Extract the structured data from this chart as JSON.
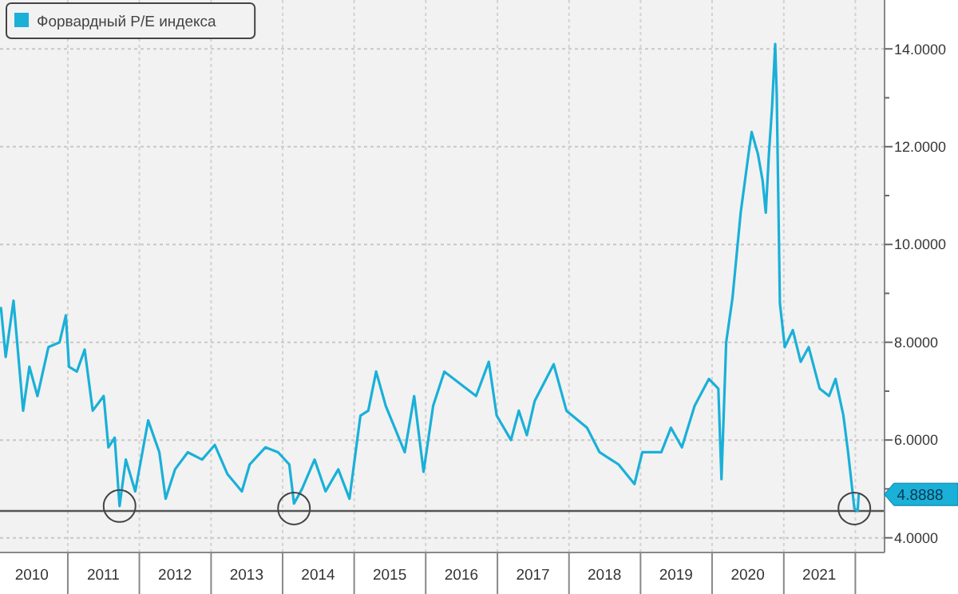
{
  "chart_data": {
    "type": "line",
    "legend": "top left",
    "grid": true,
    "x": [
      "2010-01-25",
      "2010-02-18",
      "2010-03-30",
      "2010-05-18",
      "2010-06-19",
      "2010-07-30",
      "2010-09-24",
      "2010-11-20",
      "2010-12-22",
      "2011-01-07",
      "2011-02-16",
      "2011-03-28",
      "2011-05-08",
      "2011-07-03",
      "2011-07-27",
      "2011-08-28",
      "2011-09-22",
      "2011-10-24",
      "2011-12-11",
      "2012-02-15",
      "2012-04-12",
      "2012-05-14",
      "2012-07-01",
      "2012-09-04",
      "2012-11-16",
      "2013-01-20",
      "2013-03-26",
      "2013-06-07",
      "2013-07-17",
      "2013-10-05",
      "2013-12-09",
      "2014-02-04",
      "2014-02-28",
      "2014-04-10",
      "2014-06-13",
      "2014-08-08",
      "2014-10-12",
      "2014-12-08",
      "2015-02-02",
      "2015-03-14",
      "2015-04-23",
      "2015-06-11",
      "2015-09-16",
      "2015-11-03",
      "2015-12-21",
      "2016-02-08",
      "2016-04-05",
      "2016-06-25",
      "2016-09-14",
      "2016-11-18",
      "2016-12-28",
      "2017-03-11",
      "2017-04-20",
      "2017-05-31",
      "2017-07-10",
      "2017-10-15",
      "2017-12-19",
      "2018-04-03",
      "2018-06-06",
      "2018-09-11",
      "2018-12-01",
      "2019-01-10",
      "2019-04-17",
      "2019-06-05",
      "2019-07-31",
      "2019-10-04",
      "2019-12-16",
      "2020-02-02",
      "2020-02-18",
      "2020-03-13",
      "2020-04-14",
      "2020-05-26",
      "2020-07-05",
      "2020-07-21",
      "2020-08-22",
      "2020-09-15",
      "2020-10-01",
      "2020-10-17",
      "2020-11-02",
      "2020-11-18",
      "2020-11-26",
      "2020-12-12",
      "2021-01-06",
      "2021-02-16",
      "2021-03-28",
      "2021-05-08",
      "2021-07-03",
      "2021-08-20",
      "2021-09-22",
      "2021-11-01",
      "2021-11-25",
      "2021-12-27",
      "2022-01-13",
      "2022-01-18"
    ],
    "series": [
      {
        "name": "Форвардный P/E индекса",
        "color": "#1ab0d8",
        "values": [
          8.7,
          7.7,
          8.85,
          6.6,
          7.5,
          6.9,
          7.9,
          8.0,
          8.55,
          7.5,
          7.4,
          7.85,
          6.6,
          6.9,
          5.85,
          6.05,
          4.65,
          5.6,
          4.95,
          6.4,
          5.75,
          4.8,
          5.4,
          5.75,
          5.6,
          5.9,
          5.3,
          4.95,
          5.5,
          5.85,
          5.75,
          5.5,
          4.7,
          5.0,
          5.6,
          4.95,
          5.4,
          4.8,
          6.5,
          6.6,
          7.4,
          6.7,
          5.75,
          6.9,
          5.35,
          6.7,
          7.4,
          7.15,
          6.9,
          7.6,
          6.5,
          6.0,
          6.6,
          6.1,
          6.8,
          7.55,
          6.6,
          6.25,
          5.75,
          5.5,
          5.1,
          5.75,
          5.75,
          6.25,
          5.85,
          6.7,
          7.25,
          7.05,
          5.2,
          8.0,
          8.9,
          10.65,
          11.85,
          12.3,
          11.85,
          11.3,
          10.65,
          11.85,
          12.8,
          14.1,
          13.05,
          8.8,
          7.9,
          8.25,
          7.6,
          7.9,
          7.05,
          6.9,
          7.25,
          6.5,
          5.75,
          4.6,
          4.55,
          4.89
        ]
      },
      {
        "type": "scatter",
        "marker": "circle",
        "color": "#444444",
        "x": [
          "2011-09-22",
          "2014-02-28",
          "2021-12-27"
        ],
        "values": [
          4.65,
          4.6,
          4.6
        ]
      }
    ],
    "xlim": [
      "2010-01-20",
      "2022-05-30"
    ],
    "xticks": [
      {
        "value": "2010-07-01",
        "label": "2010"
      },
      {
        "value": "2011-01-01",
        "label": null
      },
      {
        "value": "2011-07-01",
        "label": "2011"
      },
      {
        "value": "2012-01-01",
        "label": null
      },
      {
        "value": "2012-07-01",
        "label": "2012"
      },
      {
        "value": "2013-01-01",
        "label": null
      },
      {
        "value": "2013-07-01",
        "label": "2013"
      },
      {
        "value": "2014-01-01",
        "label": null
      },
      {
        "value": "2014-07-01",
        "label": "2014"
      },
      {
        "value": "2015-01-01",
        "label": null
      },
      {
        "value": "2015-07-01",
        "label": "2015"
      },
      {
        "value": "2016-01-01",
        "label": null
      },
      {
        "value": "2016-07-01",
        "label": "2016"
      },
      {
        "value": "2017-01-01",
        "label": null
      },
      {
        "value": "2017-07-01",
        "label": "2017"
      },
      {
        "value": "2018-01-01",
        "label": null
      },
      {
        "value": "2018-07-01",
        "label": "2018"
      },
      {
        "value": "2019-01-01",
        "label": null
      },
      {
        "value": "2019-07-01",
        "label": "2019"
      },
      {
        "value": "2020-01-01",
        "label": null
      },
      {
        "value": "2020-07-01",
        "label": "2020"
      },
      {
        "value": "2021-01-01",
        "label": null
      },
      {
        "value": "2021-07-01",
        "label": "2021"
      },
      {
        "value": "2022-01-01",
        "label": null
      }
    ],
    "ylim": [
      3.7,
      15
    ],
    "yticks": [
      {
        "value": 4,
        "label": "4.0000"
      },
      {
        "value": 5,
        "label": null
      },
      {
        "value": 6,
        "label": "6.0000"
      },
      {
        "value": 7,
        "label": null
      },
      {
        "value": 8,
        "label": "8.0000"
      },
      {
        "value": 9,
        "label": null
      },
      {
        "value": 10,
        "label": "10.0000"
      },
      {
        "value": 11,
        "label": null
      },
      {
        "value": 12,
        "label": "12.0000"
      },
      {
        "value": 13,
        "label": null
      },
      {
        "value": 14,
        "label": "14.0000"
      }
    ],
    "ref_lines": [
      {
        "axis": "y",
        "value": 4.55,
        "color": "#555555"
      }
    ],
    "annotations": [
      {
        "text": "4.8888",
        "x": "2022-01-18",
        "y": 4.8888
      }
    ]
  }
}
